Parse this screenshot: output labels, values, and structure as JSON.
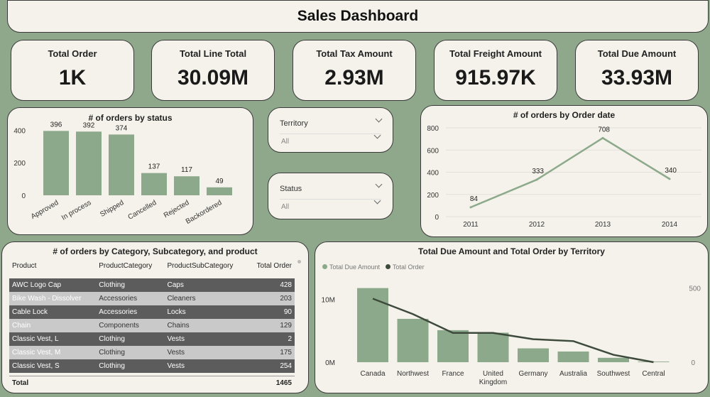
{
  "title": "Sales Dashboard",
  "kpis": [
    {
      "label": "Total Order",
      "value": "1K"
    },
    {
      "label": "Total Line Total",
      "value": "30.09M"
    },
    {
      "label": "Total Tax Amount",
      "value": "2.93M"
    },
    {
      "label": "Total Freight Amount",
      "value": "915.97K"
    },
    {
      "label": "Total Due Amount",
      "value": "33.93M"
    }
  ],
  "slicers": [
    {
      "label": "Territory",
      "value": "All"
    },
    {
      "label": "Status",
      "value": "All"
    }
  ],
  "colors": {
    "bar": "#8da98b",
    "line": "#3d4a3c",
    "bg": "#8fa88b",
    "panel": "#f4f2ea"
  },
  "chart_data": [
    {
      "type": "bar",
      "title": "# of orders by status",
      "categories": [
        "Approved",
        "In process",
        "Shipped",
        "Cancelled",
        "Rejected",
        "Backordered"
      ],
      "values": [
        396,
        392,
        374,
        137,
        117,
        49
      ],
      "yticks": [
        "400",
        "200",
        "0"
      ],
      "ylim": [
        0,
        450
      ]
    },
    {
      "type": "line",
      "title": "# of orders by Order date",
      "x": [
        "2011",
        "2012",
        "2013",
        "2014"
      ],
      "values": [
        84,
        333,
        708,
        340
      ],
      "yticks": [
        "800",
        "600",
        "400",
        "200",
        "0"
      ],
      "ylim": [
        0,
        800
      ]
    },
    {
      "type": "bar",
      "title": "Total Due Amount and Total Order by Territory",
      "categories": [
        "Canada",
        "Northwest",
        "France",
        "United Kingdom",
        "Germany",
        "Australia",
        "Southwest",
        "Central"
      ],
      "series": [
        {
          "name": "Total Due Amount",
          "values": [
            11800000,
            6900000,
            5100000,
            4700000,
            2200000,
            1700000,
            700000,
            100000
          ]
        },
        {
          "name": "Total Order",
          "values": [
            428,
            324,
            197,
            197,
            155,
            142,
            50,
            0
          ]
        }
      ],
      "y_left_ticks": [
        "10M",
        "0M"
      ],
      "y_right_ticks": [
        "500",
        "0"
      ],
      "ylim_left": [
        0,
        13000000
      ],
      "ylim_right": [
        0,
        550
      ],
      "legend_position": "top-left"
    },
    {
      "type": "table",
      "title": "# of orders by Category, Subcategory, and product",
      "columns": [
        "Product",
        "ProductCategory",
        "ProductSubCategory",
        "Total Order"
      ],
      "rows": [
        [
          "AWC Logo Cap",
          "Clothing",
          "Caps",
          "428"
        ],
        [
          "Bike Wash - Dissolver",
          "Accessories",
          "Cleaners",
          "203"
        ],
        [
          "Cable Lock",
          "Accessories",
          "Locks",
          "90"
        ],
        [
          "Chain",
          "Components",
          "Chains",
          "129"
        ],
        [
          "Classic Vest, L",
          "Clothing",
          "Vests",
          "2"
        ],
        [
          "Classic Vest, M",
          "Clothing",
          "Vests",
          "175"
        ],
        [
          "Classic Vest, S",
          "Clothing",
          "Vests",
          "254"
        ]
      ],
      "total_label": "Total",
      "total_value": "1465"
    }
  ]
}
